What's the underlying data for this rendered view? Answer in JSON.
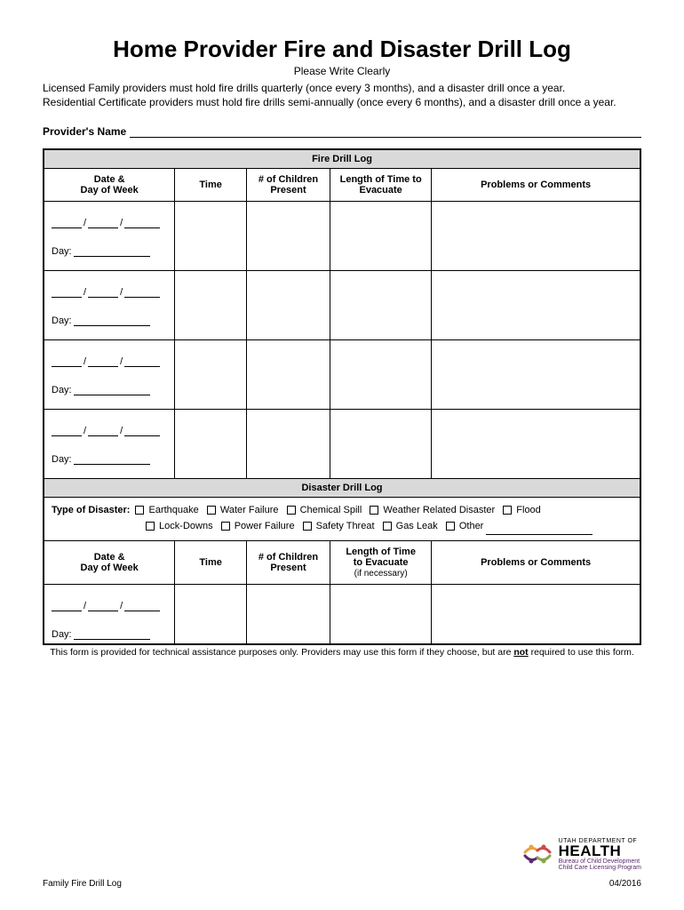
{
  "title": "Home Provider Fire and Disaster Drill Log",
  "subtitle": "Please Write Clearly",
  "intro_line1": "Licensed Family providers must hold fire drills quarterly (once every 3 months), and a disaster drill once a year.",
  "intro_line2": "Residential Certificate providers must hold fire drills semi-annually (once every 6 months), and a disaster drill once a year.",
  "provider_label": "Provider's Name",
  "fire_section": "Fire Drill Log",
  "disaster_section": "Disaster Drill Log",
  "columns": {
    "date": "Date &",
    "date2": "Day of Week",
    "time": "Time",
    "children": "# of Children",
    "children2": "Present",
    "length": "Length of Time to",
    "length2": "Evacuate",
    "length2b": "to Evacuate",
    "length3": "(if necessary)",
    "length1b": "Length of Time",
    "comments": "Problems or Comments"
  },
  "day_label": "Day:",
  "disaster_type_label": "Type of Disaster:",
  "disaster_types_row1": [
    "Earthquake",
    "Water Failure",
    "Chemical Spill",
    "Weather Related Disaster",
    "Flood"
  ],
  "disaster_types_row2": [
    "Lock-Downs",
    "Power Failure",
    "Safety Threat",
    "Gas Leak",
    "Other"
  ],
  "footnote_pre": "This form is provided for technical assistance purposes only.  Providers may use this form if they choose, but are ",
  "footnote_not": "not",
  "footnote_post": " required to use this form.",
  "footer_left": "Family Fire Drill Log",
  "footer_right": "04/2016",
  "logo": {
    "line1": "UTAH DEPARTMENT OF",
    "line2": "HEALTH",
    "line3": "Bureau of Child Development",
    "line4": "Child Care Licensing Program"
  },
  "fire_rows": 4,
  "disaster_rows": 1,
  "colors": {
    "header_bg": "#d9d9d9",
    "border": "#000000",
    "purple": "#5a2a6e",
    "orange": "#e8a33d",
    "red": "#c84c4a",
    "green": "#8aa54a"
  }
}
